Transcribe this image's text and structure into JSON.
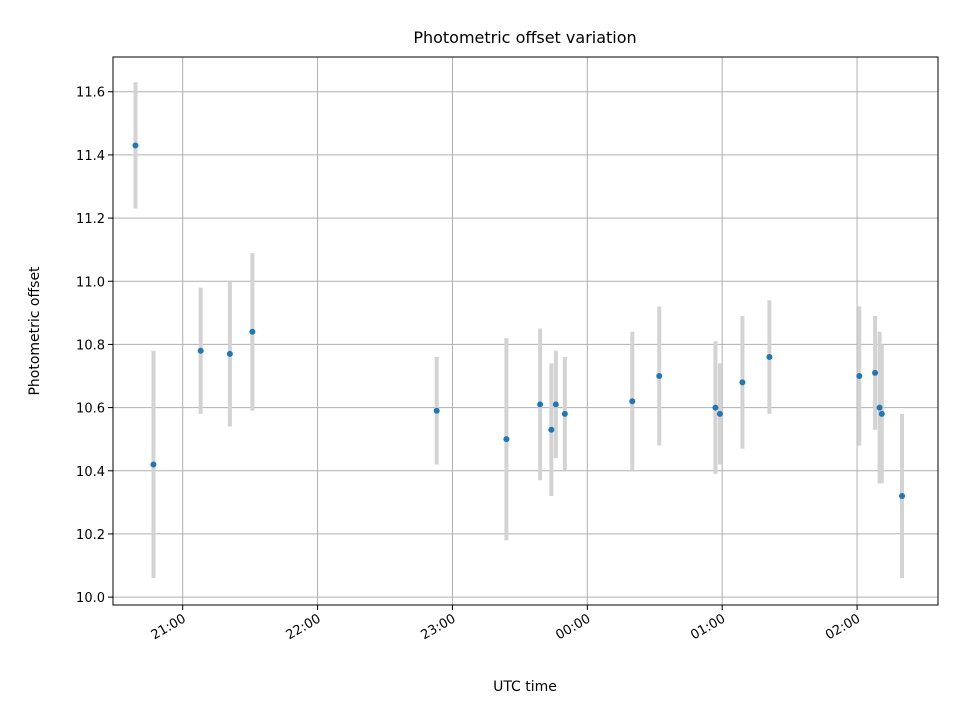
{
  "chart_data": {
    "type": "scatter",
    "title": "Photometric offset variation",
    "xlabel": "UTC time",
    "ylabel": "Photometric offset",
    "x_tick_labels": [
      "21:00",
      "22:00",
      "23:00",
      "00:00",
      "01:00",
      "02:00"
    ],
    "y_tick_labels": [
      "10.0",
      "10.2",
      "10.4",
      "10.6",
      "10.8",
      "11.0",
      "11.2",
      "11.4",
      "11.6"
    ],
    "ylim": [
      9.975,
      11.71
    ],
    "grid": true,
    "colors": {
      "point": "#1f77b4",
      "errorbar": "#d3d3d3",
      "grid": "#b0b0b0",
      "axes": "#000000"
    },
    "points": [
      {
        "t": "20:39",
        "y": 11.43,
        "err": 0.2
      },
      {
        "t": "20:47",
        "y": 10.42,
        "err": 0.36
      },
      {
        "t": "21:08",
        "y": 10.78,
        "err": 0.2
      },
      {
        "t": "21:21",
        "y": 10.77,
        "err": 0.23
      },
      {
        "t": "21:31",
        "y": 10.84,
        "err": 0.25
      },
      {
        "t": "22:53",
        "y": 10.59,
        "err": 0.17
      },
      {
        "t": "23:24",
        "y": 10.5,
        "err": 0.32
      },
      {
        "t": "23:39",
        "y": 10.61,
        "err": 0.24
      },
      {
        "t": "23:44",
        "y": 10.53,
        "err": 0.21
      },
      {
        "t": "23:46",
        "y": 10.61,
        "err": 0.17
      },
      {
        "t": "23:50",
        "y": 10.58,
        "err": 0.18
      },
      {
        "t": "00:20",
        "y": 10.62,
        "err": 0.22
      },
      {
        "t": "00:32",
        "y": 10.7,
        "err": 0.22
      },
      {
        "t": "00:57",
        "y": 10.6,
        "err": 0.21
      },
      {
        "t": "00:59",
        "y": 10.58,
        "err": 0.16
      },
      {
        "t": "01:09",
        "y": 10.68,
        "err": 0.21
      },
      {
        "t": "01:21",
        "y": 10.76,
        "err": 0.18
      },
      {
        "t": "02:01",
        "y": 10.7,
        "err": 0.22
      },
      {
        "t": "02:08",
        "y": 10.71,
        "err": 0.18
      },
      {
        "t": "02:10",
        "y": 10.6,
        "err": 0.24
      },
      {
        "t": "02:11",
        "y": 10.58,
        "err": 0.22
      },
      {
        "t": "02:20",
        "y": 10.32,
        "err": 0.26
      }
    ]
  }
}
